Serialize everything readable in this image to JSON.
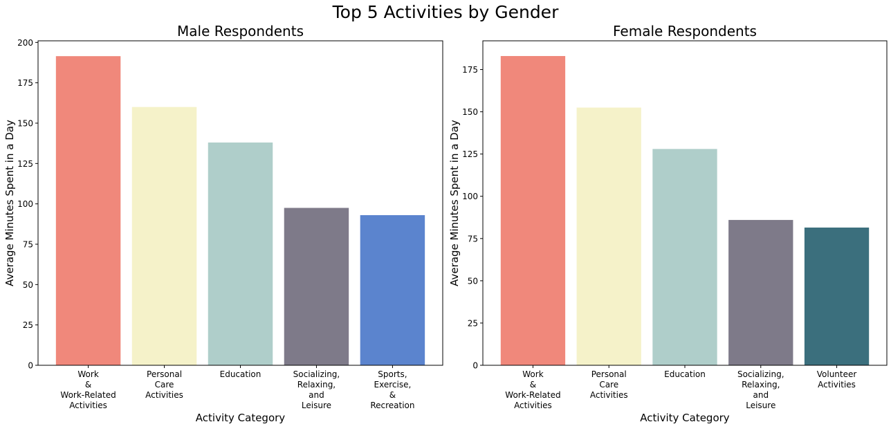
{
  "suptitle": "Top 5 Activities by Gender",
  "colors": {
    "work": "#F0887B",
    "personal_care": "#F5F2C9",
    "education": "#AFCECA",
    "socializing": "#7E7A89",
    "sports": "#5B84CE",
    "volunteer": "#3B6F7D"
  },
  "chart_data": [
    {
      "type": "bar",
      "title": "Male Respondents",
      "xlabel": "Activity Category",
      "ylabel": "Average Minutes Spent in a Day",
      "ylim": [
        0,
        201
      ],
      "yticks": [
        0,
        25,
        50,
        75,
        100,
        125,
        150,
        175,
        200
      ],
      "categories": [
        [
          "Work",
          "&",
          "Work-Related",
          "Activities"
        ],
        [
          "Personal",
          "Care",
          "Activities"
        ],
        [
          "Education"
        ],
        [
          "Socializing,",
          "Relaxing,",
          "and",
          "Leisure"
        ],
        [
          "Sports,",
          "Exercise,",
          "&",
          "Recreation"
        ]
      ],
      "values": [
        191.5,
        160,
        138,
        97.5,
        93
      ],
      "bar_colors": [
        "#F0887B",
        "#F5F2C9",
        "#AFCECA",
        "#7E7A89",
        "#5B84CE"
      ]
    },
    {
      "type": "bar",
      "title": "Female Respondents",
      "xlabel": "Activity Category",
      "ylabel": "Average Minutes Spent in a Day",
      "ylim": [
        0,
        192
      ],
      "yticks": [
        0,
        25,
        50,
        75,
        100,
        125,
        150,
        175
      ],
      "categories": [
        [
          "Work",
          "&",
          "Work-Related",
          "Activities"
        ],
        [
          "Personal",
          "Care",
          "Activities"
        ],
        [
          "Education"
        ],
        [
          "Socializing,",
          "Relaxing,",
          "and",
          "Leisure"
        ],
        [
          "Volunteer",
          "Activities"
        ]
      ],
      "values": [
        183,
        152.5,
        128,
        86,
        81.5
      ],
      "bar_colors": [
        "#F0887B",
        "#F5F2C9",
        "#AFCECA",
        "#7E7A89",
        "#3B6F7D"
      ]
    }
  ]
}
